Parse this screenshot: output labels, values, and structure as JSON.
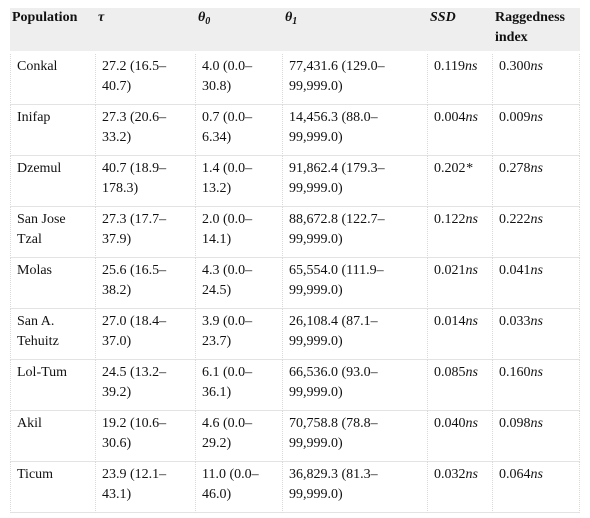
{
  "table": {
    "headers": {
      "population": "Population",
      "tau": "τ",
      "theta0_symbol": "θ",
      "theta0_sub": "0",
      "theta1_symbol": "θ",
      "theta1_sub": "1",
      "ssd": "SSD",
      "raggedness": "Raggedness index"
    },
    "rows": [
      {
        "population": "Conkal",
        "tau": "27.2 (16.5–40.7)",
        "theta0": "4.0 (0.0–30.8)",
        "theta1": "77,431.6 (129.0–99,999.0)",
        "ssd_value": "0.119",
        "ssd_sig": "ns",
        "rag_value": "0.300",
        "rag_sig": "ns"
      },
      {
        "population": "Inifap",
        "tau": "27.3 (20.6–33.2)",
        "theta0": "0.7 (0.0–6.34)",
        "theta1": "14,456.3 (88.0–99,999.0)",
        "ssd_value": "0.004",
        "ssd_sig": "ns",
        "rag_value": "0.009",
        "rag_sig": "ns"
      },
      {
        "population": "Dzemul",
        "tau": "40.7 (18.9–178.3)",
        "theta0": "1.4 (0.0–13.2)",
        "theta1": "91,862.4 (179.3–99,999.0)",
        "ssd_value": "0.202",
        "ssd_sig": "*",
        "rag_value": "0.278",
        "rag_sig": "ns"
      },
      {
        "population": "San Jose Tzal",
        "tau": "27.3 (17.7–37.9)",
        "theta0": "2.0 (0.0–14.1)",
        "theta1": "88,672.8 (122.7–99,999.0)",
        "ssd_value": "0.122",
        "ssd_sig": "ns",
        "rag_value": "0.222",
        "rag_sig": "ns"
      },
      {
        "population": "Molas",
        "tau": "25.6 (16.5–38.2)",
        "theta0": "4.3 (0.0–24.5)",
        "theta1": "65,554.0 (111.9–99,999.0)",
        "ssd_value": "0.021",
        "ssd_sig": "ns",
        "rag_value": "0.041",
        "rag_sig": "ns"
      },
      {
        "population": "San A. Tehuitz",
        "tau": "27.0 (18.4–37.0)",
        "theta0": "3.9 (0.0–23.7)",
        "theta1": "26,108.4 (87.1–99,999.0)",
        "ssd_value": "0.014",
        "ssd_sig": "ns",
        "rag_value": "0.033",
        "rag_sig": "ns"
      },
      {
        "population": "Lol-Tum",
        "tau": "24.5 (13.2–39.2)",
        "theta0": "6.1 (0.0–36.1)",
        "theta1": "66,536.0 (93.0–99,999.0)",
        "ssd_value": "0.085",
        "ssd_sig": "ns",
        "rag_value": "0.160",
        "rag_sig": "ns"
      },
      {
        "population": "Akil",
        "tau": "19.2 (10.6–30.6)",
        "theta0": "4.6 (0.0–29.2)",
        "theta1": "70,758.8 (78.8–99,999.0)",
        "ssd_value": "0.040",
        "ssd_sig": "ns",
        "rag_value": "0.098",
        "rag_sig": "ns"
      },
      {
        "population": "Ticum",
        "tau": "23.9 (12.1–43.1)",
        "theta0": "11.0 (0.0–46.0)",
        "theta1": "36,829.3 (81.3–99,999.0)",
        "ssd_value": "0.032",
        "ssd_sig": "ns",
        "rag_value": "0.064",
        "rag_sig": "ns"
      }
    ]
  }
}
